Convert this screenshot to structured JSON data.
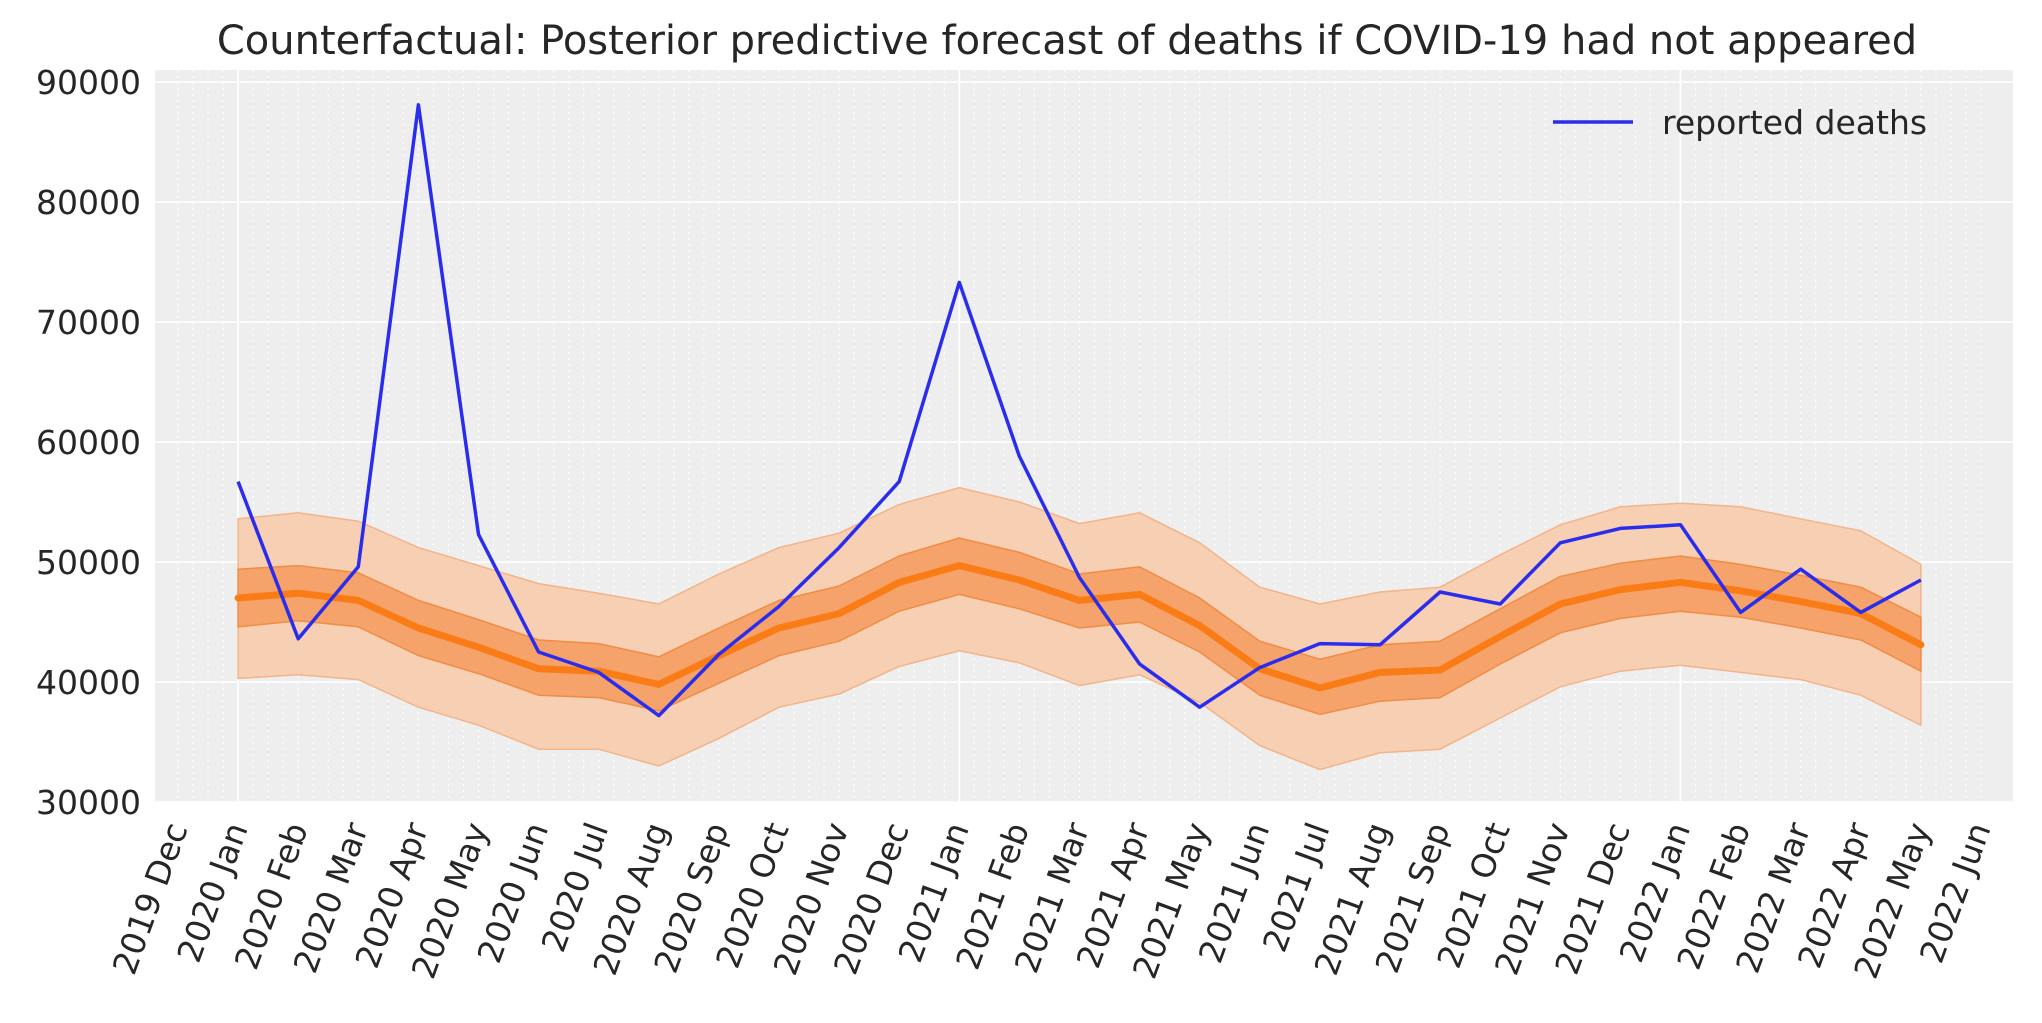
{
  "chart_data": {
    "type": "line",
    "title": "Counterfactual: Posterior predictive forecast of deaths if COVID-19 had not appeared",
    "xlabel": "",
    "ylabel": "",
    "x_tick_labels": [
      "2019 Dec",
      "2020 Jan",
      "2020 Feb",
      "2020 Mar",
      "2020 Apr",
      "2020 May",
      "2020 Jun",
      "2020 Jul",
      "2020 Aug",
      "2020 Sep",
      "2020 Oct",
      "2020 Nov",
      "2020 Dec",
      "2021 Jan",
      "2021 Feb",
      "2021 Mar",
      "2021 Apr",
      "2021 May",
      "2021 Jun",
      "2021 Jul",
      "2021 Aug",
      "2021 Sep",
      "2021 Oct",
      "2021 Nov",
      "2021 Dec",
      "2022 Jan",
      "2022 Feb",
      "2022 Mar",
      "2022 Apr",
      "2022 May",
      "2022 Jun"
    ],
    "x": [
      "2020 Jan",
      "2020 Feb",
      "2020 Mar",
      "2020 Apr",
      "2020 May",
      "2020 Jun",
      "2020 Jul",
      "2020 Aug",
      "2020 Sep",
      "2020 Oct",
      "2020 Nov",
      "2020 Dec",
      "2021 Jan",
      "2021 Feb",
      "2021 Mar",
      "2021 Apr",
      "2021 May",
      "2021 Jun",
      "2021 Jul",
      "2021 Aug",
      "2021 Sep",
      "2021 Oct",
      "2021 Nov",
      "2021 Dec",
      "2022 Jan",
      "2022 Feb",
      "2022 Mar",
      "2022 Apr",
      "2022 May"
    ],
    "ylim": [
      30000,
      90000
    ],
    "yticks": [
      30000,
      40000,
      50000,
      60000,
      70000,
      80000,
      90000
    ],
    "grid": true,
    "legend": {
      "position": "top-right",
      "entries": [
        "reported deaths"
      ]
    },
    "series": [
      {
        "name": "reported deaths",
        "kind": "line",
        "color": "#2a2eec",
        "values": [
          56700,
          43600,
          49600,
          88100,
          52300,
          42500,
          40800,
          37200,
          42300,
          46300,
          51200,
          56700,
          73300,
          58800,
          48700,
          41500,
          37900,
          41200,
          43200,
          43100,
          47500,
          46500,
          51600,
          52800,
          53100,
          45800,
          49400,
          45800,
          48500
        ]
      },
      {
        "kind": "median",
        "color": "#fa7c17",
        "values": [
          47000,
          47400,
          46800,
          44500,
          42900,
          41100,
          40900,
          39800,
          42200,
          44500,
          45700,
          48300,
          49700,
          48500,
          46800,
          47300,
          44700,
          41100,
          39500,
          40800,
          41000,
          43800,
          46500,
          47700,
          48300,
          47600,
          46700,
          45700,
          43100
        ]
      },
      {
        "kind": "band-inner",
        "color": "#f5a36a",
        "lower": [
          44600,
          45100,
          44600,
          42200,
          40700,
          38900,
          38700,
          37600,
          39900,
          42200,
          43400,
          45900,
          47300,
          46100,
          44500,
          45000,
          42500,
          38900,
          37300,
          38400,
          38700,
          41500,
          44100,
          45300,
          45900,
          45400,
          44500,
          43500,
          40900
        ],
        "upper": [
          49400,
          49700,
          49100,
          46800,
          45200,
          43500,
          43200,
          42100,
          44500,
          46800,
          48000,
          50500,
          52000,
          50800,
          49000,
          49600,
          47000,
          43400,
          41900,
          43100,
          43400,
          46100,
          48800,
          49900,
          50500,
          49800,
          48900,
          47900,
          45400
        ]
      },
      {
        "kind": "band-outer",
        "color": "#f7cfb3",
        "lower": [
          40300,
          40600,
          40200,
          37900,
          36400,
          34400,
          34400,
          33000,
          35300,
          37900,
          39000,
          41300,
          42600,
          41600,
          39700,
          40600,
          38300,
          34700,
          32700,
          34100,
          34400,
          37000,
          39600,
          40900,
          41400,
          40800,
          40200,
          38900,
          36400
        ],
        "upper": [
          53600,
          54100,
          53400,
          51200,
          49700,
          48200,
          47400,
          46500,
          49000,
          51200,
          52400,
          54800,
          56200,
          55000,
          53200,
          54100,
          51600,
          47900,
          46500,
          47500,
          47900,
          50600,
          53100,
          54600,
          54900,
          54600,
          53600,
          52600,
          49800
        ]
      }
    ]
  }
}
